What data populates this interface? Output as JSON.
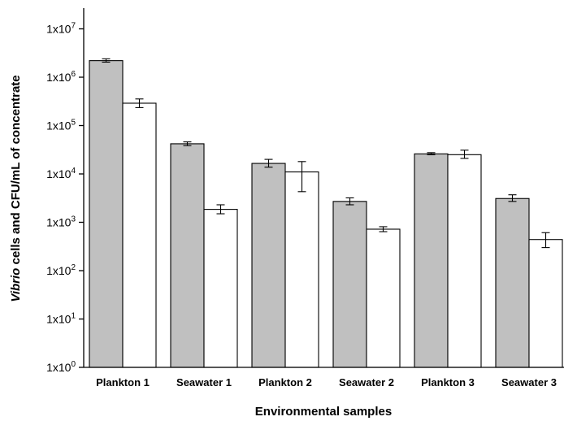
{
  "chart_data": {
    "type": "bar",
    "log_scale": true,
    "categories": [
      "Plankton 1",
      "Seawater 1",
      "Plankton 2",
      "Seawater 2",
      "Plankton 3",
      "Seawater 3"
    ],
    "series": [
      {
        "color": "#c0c0c0",
        "values": [
          2200000,
          42000,
          16500,
          2700,
          26000,
          3100
        ],
        "error_low": [
          2050000,
          38500,
          13800,
          2300,
          25000,
          2700
        ],
        "error_high": [
          2400000,
          46000,
          20000,
          3200,
          27500,
          3700
        ]
      },
      {
        "color": "#ffffff",
        "values": [
          290000,
          1850,
          11000,
          720,
          25000,
          440
        ],
        "error_low": [
          235000,
          1500,
          4300,
          640,
          21000,
          300
        ],
        "error_high": [
          355000,
          2300,
          18000,
          810,
          31000,
          610
        ]
      }
    ],
    "ylim": [
      1,
      20000000
    ],
    "y_ticks": [
      {
        "base": "1x10",
        "exp": "0"
      },
      {
        "base": "1x10",
        "exp": "1"
      },
      {
        "base": "1x10",
        "exp": "2"
      },
      {
        "base": "1x10",
        "exp": "3"
      },
      {
        "base": "1x10",
        "exp": "4"
      },
      {
        "base": "1x10",
        "exp": "5"
      },
      {
        "base": "1x10",
        "exp": "6"
      },
      {
        "base": "1x10",
        "exp": "7"
      }
    ],
    "xlabel": "Environmental samples",
    "ylabel_italic": "Vibrio",
    "ylabel_rest": " cells and CFU/mL of concentrate"
  }
}
